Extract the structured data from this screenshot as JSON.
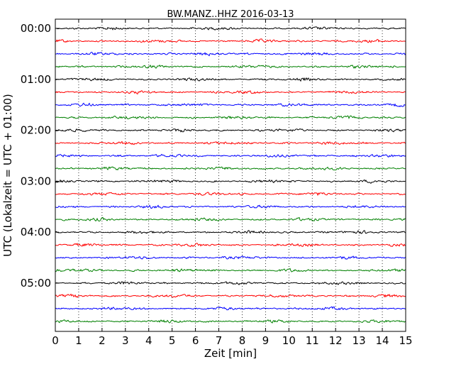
{
  "chart_data": {
    "type": "line",
    "title": "BW.MANZ..HHZ 2016-03-13",
    "xlabel": "Zeit  [min]",
    "ylabel": "UTC (Lokalzeit = UTC + 01:00)",
    "xlim": [
      0,
      15
    ],
    "x_ticks": [
      "0",
      "1",
      "2",
      "3",
      "4",
      "5",
      "6",
      "7",
      "8",
      "9",
      "10",
      "11",
      "12",
      "13",
      "14",
      "15"
    ],
    "y_ticks": [
      "00:00",
      "01:00",
      "02:00",
      "03:00",
      "04:00",
      "05:00"
    ],
    "grid": "vertical dotted",
    "trace_colors": [
      "#000000",
      "#ff0000",
      "#0000ff",
      "#008000"
    ],
    "trace_count": 24,
    "trace_interval_min": 15
  }
}
